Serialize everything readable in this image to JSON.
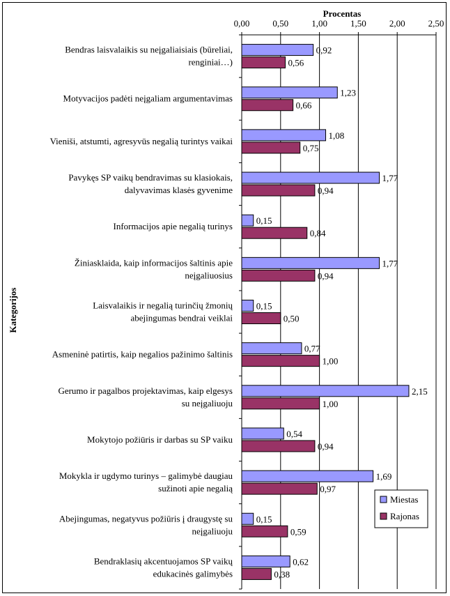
{
  "chart_data": {
    "type": "bar",
    "orientation": "horizontal",
    "xlabel": "Procentas",
    "ylabel": "Kategorijos",
    "xlim": [
      0,
      2.5
    ],
    "x_ticks": [
      "0,00",
      "0,50",
      "1,00",
      "1,50",
      "2,00",
      "2,50"
    ],
    "x_tick_values": [
      0,
      0.5,
      1.0,
      1.5,
      2.0,
      2.5
    ],
    "x_axis_position": "top",
    "grid": "vertical",
    "legend_position": "bottom-right",
    "categories": [
      [
        "Bendras laisvalaikis su neįgaliaisiais (būreliai,",
        "renginiai…)"
      ],
      [
        "Motyvacijos padėti neįgaliam argumentavimas"
      ],
      [
        "Vieniši, atstumti, agresyvūs negalią turintys vaikai"
      ],
      [
        "Pavykęs SP vaikų bendravimas su klasiokais,",
        "dalyvavimas klasės gyvenime"
      ],
      [
        "Informacijos apie negalią turinys"
      ],
      [
        "Žiniasklaida, kaip informacijos šaltinis apie",
        "neįgaliuosius"
      ],
      [
        "Laisvalaikis ir negalią turinčių žmonių",
        "abejingumas bendrai veiklai"
      ],
      [
        "Asmeninė patirtis, kaip negalios pažinimo šaltinis"
      ],
      [
        "Gerumo ir pagalbos projektavimas, kaip elgesys",
        "su neįgaliuoju"
      ],
      [
        "Mokytojo požiūris ir darbas su SP vaiku"
      ],
      [
        "Mokykla ir ugdymo turinys – galimybė daugiau",
        "sužinoti apie negalią"
      ],
      [
        "Abejingumas, negatyvus požiūris į draugystę su",
        "neįgaliuoju"
      ],
      [
        "Bendraklasių akcentuojamos SP vaikų",
        "edukacinės galimybės"
      ]
    ],
    "series": [
      {
        "name": "Miestas",
        "color": "#9999ff",
        "values": [
          0.92,
          1.23,
          1.08,
          1.77,
          0.15,
          1.77,
          0.15,
          0.77,
          2.15,
          0.54,
          1.69,
          0.15,
          0.62
        ],
        "labels": [
          "0,92",
          "1,23",
          "1,08",
          "1,77",
          "0,15",
          "1,77",
          "0,15",
          "0,77",
          "2,15",
          "0,54",
          "1,69",
          "0,15",
          "0,62"
        ]
      },
      {
        "name": "Rajonas",
        "color": "#993366",
        "values": [
          0.56,
          0.66,
          0.75,
          0.94,
          0.84,
          0.94,
          0.5,
          1.0,
          1.0,
          0.94,
          0.97,
          0.59,
          0.38
        ],
        "labels": [
          "0,56",
          "0,66",
          "0,75",
          "0,94",
          "0,84",
          "0,94",
          "0,50",
          "1,00",
          "1,00",
          "0,94",
          "0,97",
          "0,59",
          "0,38"
        ]
      }
    ]
  }
}
